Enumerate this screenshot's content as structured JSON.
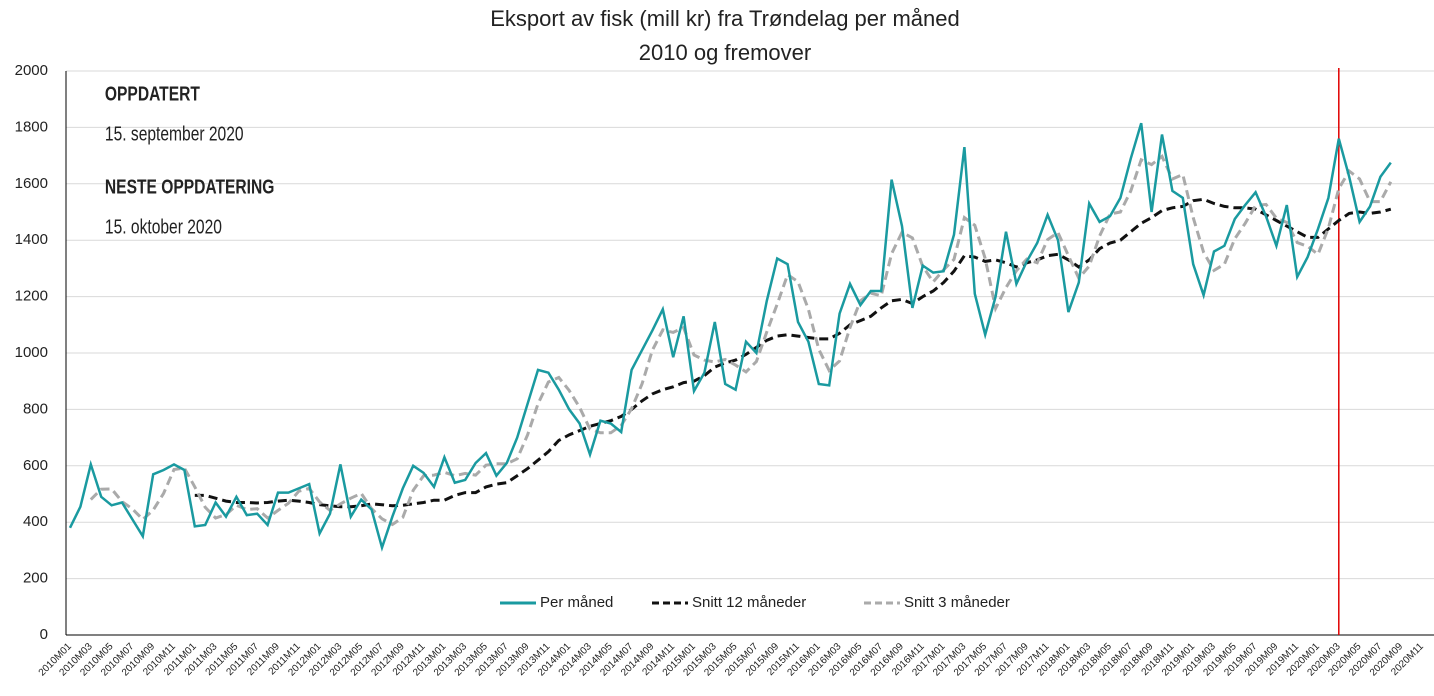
{
  "chart_data": {
    "type": "line",
    "title": "Eksport av fisk (mill kr) fra Trøndelag per måned",
    "subtitle": "2010 og fremover",
    "annotations": [
      "OPPDATERT",
      "15. september 2020",
      "NESTE OPPDATERING",
      "15. oktober 2020"
    ],
    "categories": [
      "2010M01",
      null,
      "2010M03",
      null,
      "2010M05",
      null,
      "2010M07",
      null,
      "2010M09",
      null,
      "2010M11",
      null,
      "2011M01",
      null,
      "2011M03",
      null,
      "2011M05",
      null,
      "2011M07",
      null,
      "2011M09",
      null,
      "2011M11",
      null,
      "2012M01",
      null,
      "2012M03",
      null,
      "2012M05",
      null,
      "2012M07",
      null,
      "2012M09",
      null,
      "2012M11",
      null,
      "2013M01",
      null,
      "2013M03",
      null,
      "2013M05",
      null,
      "2013M07",
      null,
      "2013M09",
      null,
      "2013M11",
      null,
      "2014M01",
      null,
      "2014M03",
      null,
      "2014M05",
      null,
      "2014M07",
      null,
      "2014M09",
      null,
      "2014M11",
      null,
      "2015M01",
      null,
      "2015M03",
      null,
      "2015M05",
      null,
      "2015M07",
      null,
      "2015M09",
      null,
      "2015M11",
      null,
      "2016M01",
      null,
      "2016M03",
      null,
      "2016M05",
      null,
      "2016M07",
      null,
      "2016M09",
      null,
      "2016M11",
      null,
      "2017M01",
      null,
      "2017M03",
      null,
      "2017M05",
      null,
      "2017M07",
      null,
      "2017M09",
      null,
      "2017M11",
      null,
      "2018M01",
      null,
      "2018M03",
      null,
      "2018M05",
      null,
      "2018M07",
      null,
      "2018M09",
      null,
      "2018M11",
      null,
      "2019M01",
      null,
      "2019M03",
      null,
      "2019M05",
      null,
      "2019M07",
      null,
      "2019M09",
      null,
      "2019M11",
      null,
      "2020M01",
      null,
      "2020M03",
      null,
      "2020M05",
      null,
      "2020M07",
      null,
      "2020M09",
      null,
      "2020M11"
    ],
    "series": [
      {
        "name": "Per måned",
        "color": "#1a9aa0",
        "dash": false,
        "values": [
          380,
          455,
          605,
          490,
          460,
          470,
          410,
          350,
          570,
          585,
          605,
          585,
          385,
          390,
          470,
          420,
          490,
          425,
          430,
          390,
          505,
          505,
          520,
          535,
          360,
          430,
          605,
          420,
          480,
          445,
          310,
          420,
          520,
          600,
          575,
          525,
          630,
          540,
          550,
          610,
          645,
          565,
          610,
          700,
          820,
          940,
          930,
          870,
          800,
          750,
          640,
          760,
          750,
          720,
          940,
          1010,
          1080,
          1155,
          985,
          1130,
          865,
          930,
          1110,
          890,
          870,
          1040,
          1000,
          1185,
          1335,
          1315,
          1110,
          1040,
          890,
          885,
          1140,
          1245,
          1170,
          1220,
          1220,
          1615,
          1450,
          1160,
          1310,
          1285,
          1290,
          1420,
          1730,
          1210,
          1065,
          1200,
          1430,
          1245,
          1325,
          1390,
          1490,
          1400,
          1145,
          1250,
          1530,
          1465,
          1485,
          1550,
          1690,
          1815,
          1500,
          1775,
          1575,
          1550,
          1315,
          1205,
          1360,
          1380,
          1475,
          1525,
          1570,
          1485,
          1380,
          1525,
          1270,
          1340,
          1440,
          1550,
          1760,
          1625,
          1465,
          1520,
          1625,
          1675,
          null,
          null,
          null
        ]
      },
      {
        "name": "Snitt 12 måneder",
        "color": "#111111",
        "dash": true,
        "values": [
          null,
          null,
          null,
          null,
          null,
          null,
          null,
          null,
          null,
          null,
          null,
          null,
          495,
          495,
          485,
          475,
          470,
          470,
          468,
          470,
          475,
          478,
          475,
          470,
          462,
          458,
          455,
          455,
          458,
          465,
          462,
          458,
          460,
          465,
          470,
          478,
          478,
          495,
          505,
          505,
          525,
          535,
          540,
          565,
          590,
          620,
          650,
          690,
          710,
          725,
          740,
          750,
          760,
          775,
          800,
          830,
          855,
          870,
          880,
          895,
          900,
          920,
          950,
          965,
          975,
          995,
          1020,
          1045,
          1060,
          1065,
          1060,
          1055,
          1050,
          1050,
          1070,
          1100,
          1115,
          1130,
          1160,
          1185,
          1190,
          1175,
          1200,
          1220,
          1250,
          1290,
          1345,
          1340,
          1325,
          1330,
          1320,
          1305,
          1320,
          1330,
          1345,
          1350,
          1330,
          1305,
          1330,
          1370,
          1390,
          1400,
          1430,
          1460,
          1480,
          1505,
          1515,
          1520,
          1540,
          1545,
          1530,
          1520,
          1515,
          1515,
          1510,
          1490,
          1470,
          1450,
          1430,
          1410,
          1410,
          1440,
          1470,
          1495,
          1500,
          1495,
          1500,
          1510,
          null,
          null,
          null
        ]
      },
      {
        "name": "Snitt 3 måneder",
        "color": "#aaaaaa",
        "dash": true,
        "values": [
          null,
          null,
          480,
          517,
          518,
          473,
          447,
          410,
          443,
          502,
          587,
          592,
          525,
          453,
          415,
          427,
          460,
          445,
          448,
          415,
          442,
          467,
          510,
          520,
          472,
          442,
          465,
          485,
          502,
          448,
          412,
          392,
          417,
          513,
          565,
          567,
          577,
          565,
          573,
          567,
          602,
          607,
          607,
          625,
          710,
          820,
          897,
          913,
          867,
          807,
          730,
          717,
          717,
          743,
          803,
          890,
          1010,
          1082,
          1073,
          1090,
          993,
          975,
          968,
          977,
          957,
          933,
          970,
          1075,
          1173,
          1278,
          1253,
          1155,
          1013,
          938,
          972,
          1090,
          1185,
          1212,
          1203,
          1352,
          1428,
          1408,
          1307,
          1252,
          1295,
          1332,
          1480,
          1453,
          1335,
          1158,
          1232,
          1292,
          1333,
          1320,
          1402,
          1427,
          1345,
          1265,
          1308,
          1415,
          1493,
          1500,
          1575,
          1685,
          1668,
          1697,
          1617,
          1633,
          1480,
          1357,
          1293,
          1315,
          1405,
          1460,
          1523,
          1527,
          1478,
          1463,
          1392,
          1378,
          1350,
          1443,
          1583,
          1645,
          1617,
          1537,
          1537,
          1607,
          null,
          null,
          null
        ]
      }
    ],
    "vline": {
      "x": "2020M03",
      "color": "#e00000"
    },
    "ylim": [
      0,
      2000
    ],
    "yticks": [
      0,
      200,
      400,
      600,
      800,
      1000,
      1200,
      1400,
      1600,
      1800,
      2000
    ],
    "grid": true,
    "legend": "bottom"
  }
}
